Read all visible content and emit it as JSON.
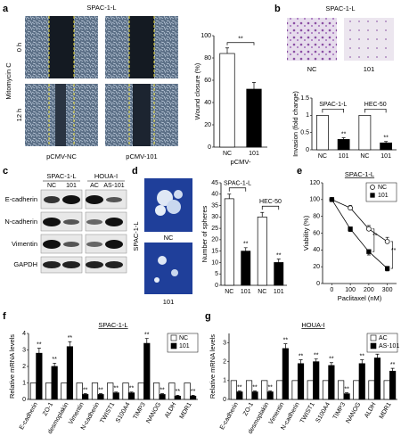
{
  "figure": {
    "letters": [
      "a",
      "b",
      "c",
      "d",
      "e",
      "f",
      "g"
    ],
    "a": {
      "title": "SPAC-1-L",
      "treatment": "Mitomycin C",
      "times": [
        "0 h",
        "12 h"
      ],
      "images": [
        "pCMV-NC",
        "pCMV-101"
      ]
    },
    "b": {
      "title": "SPAC-1-L",
      "images": [
        "NC",
        "101"
      ]
    },
    "c": {
      "lines": [
        "SPAC-1-L",
        "HOUA-I"
      ],
      "lanes": [
        "NC",
        "101",
        "AC",
        "AS-101"
      ],
      "proteins": [
        "E-cadherin",
        "N-cadherin",
        "Vimentin",
        "GAPDH"
      ]
    },
    "d": {
      "line": "SPAC-1-L",
      "images": [
        "NC",
        "101"
      ]
    }
  },
  "chart_data": [
    {
      "type": "bar",
      "ylabel": "Wound closure (%)",
      "xlabel": "pCMV-",
      "categories": [
        "NC",
        "101"
      ],
      "values": [
        84,
        52
      ],
      "errors": [
        5,
        6
      ],
      "colors": [
        "#ffffff",
        "#000000"
      ],
      "ylim": [
        0,
        100
      ],
      "yticks": [
        0,
        20,
        40,
        60,
        80,
        100
      ],
      "significance": "**"
    },
    {
      "type": "bar",
      "ylabel": "Invasion (fold change)",
      "groups": [
        "SPAC-1-L",
        "HEC-50"
      ],
      "categories": [
        "NC",
        "101",
        "NC",
        "101"
      ],
      "values": [
        1,
        0.3,
        1,
        0.2
      ],
      "errors": [
        null,
        0.05,
        null,
        0.04
      ],
      "colors": [
        "#ffffff",
        "#000000",
        "#ffffff",
        "#000000"
      ],
      "ylim": [
        0,
        1.5
      ],
      "yticks": [
        0,
        0.5,
        1,
        1.5
      ],
      "significance": [
        null,
        "**",
        null,
        "**"
      ]
    },
    {
      "type": "bar",
      "ylabel": "Number of spheres",
      "groups": [
        "SPAC-1-L",
        "HEC-50"
      ],
      "categories": [
        "NC",
        "101",
        "NC",
        "101"
      ],
      "values": [
        38,
        15,
        30,
        10
      ],
      "errors": [
        2,
        1.5,
        2,
        1.5
      ],
      "colors": [
        "#ffffff",
        "#000000",
        "#ffffff",
        "#000000"
      ],
      "ylim": [
        0,
        45
      ],
      "yticks": [
        0,
        5,
        10,
        15,
        20,
        25,
        30,
        35,
        40,
        45
      ],
      "significance": [
        null,
        "**",
        null,
        "**"
      ]
    },
    {
      "type": "line",
      "title": "SPAC-1-L",
      "ylabel": "Viability (%)",
      "xlabel": "Paclitaxel (nM)",
      "x": [
        0,
        100,
        200,
        300
      ],
      "xlim": [
        -50,
        350
      ],
      "xticks": [
        0,
        100,
        200,
        300
      ],
      "ylim": [
        0,
        120
      ],
      "yticks": [
        0,
        20,
        40,
        60,
        80,
        100,
        120
      ],
      "legend": "upper right",
      "series": [
        {
          "name": "NC",
          "color": "#ffffff",
          "marker": "circle",
          "values": [
            100,
            90,
            65,
            50
          ],
          "errors": [
            null,
            3,
            4,
            5
          ]
        },
        {
          "name": "101",
          "color": "#000000",
          "marker": "square",
          "values": [
            100,
            65,
            38,
            18
          ],
          "errors": [
            null,
            3,
            4,
            3
          ]
        }
      ],
      "significance": [
        null,
        null,
        "**",
        "**"
      ]
    },
    {
      "type": "bar",
      "title": "SPAC-1-L",
      "ylabel": "Relative mRNA levels",
      "xtick_rotation": -60,
      "legend": "upper right",
      "categories": [
        "E-cadherin",
        "ZO-1",
        "desmoplakin",
        "Vimentin",
        "N-cadherin",
        "TWIST1",
        "S100A4",
        "TIMP3",
        "NANOG",
        "ALDH",
        "MDR1"
      ],
      "ylim": [
        0,
        4
      ],
      "yticks": [
        0,
        1,
        2,
        3,
        4
      ],
      "series": [
        {
          "name": "NC",
          "color": "#ffffff",
          "values": [
            1,
            1,
            1,
            1,
            1,
            1,
            1,
            1,
            1,
            1,
            1
          ]
        },
        {
          "name": "101",
          "color": "#000000",
          "values": [
            2.8,
            2.0,
            3.2,
            0.3,
            0.3,
            0.4,
            0.4,
            3.4,
            0.3,
            0.2,
            0.2
          ],
          "errors": [
            0.3,
            0.2,
            0.3,
            0.05,
            0.05,
            0.05,
            0.05,
            0.3,
            0.05,
            0.05,
            0.05
          ],
          "significance": [
            "**",
            "**",
            "**",
            "**",
            "**",
            "**",
            "**",
            "**",
            "**",
            "**",
            "**"
          ]
        }
      ]
    },
    {
      "type": "bar",
      "title": "HOUA-I",
      "ylabel": "Relative mRNA levels",
      "xtick_rotation": -60,
      "legend": "upper right",
      "categories": [
        "E-cadherin",
        "ZO-1",
        "desmoplakin",
        "Vimentin",
        "N-cadherin",
        "TWIST1",
        "S100A4",
        "TIMP3",
        "NANOG",
        "ALDH",
        "MDR1"
      ],
      "ylim": [
        0,
        3.5
      ],
      "yticks": [
        0,
        1,
        2,
        3
      ],
      "series": [
        {
          "name": "AC",
          "color": "#ffffff",
          "values": [
            1,
            1,
            1,
            1,
            1,
            1,
            1,
            1,
            1,
            1,
            1
          ]
        },
        {
          "name": "AS-101",
          "color": "#000000",
          "values": [
            0.4,
            0.4,
            0.4,
            2.7,
            1.9,
            2.0,
            1.8,
            0.3,
            1.9,
            2.2,
            1.5
          ],
          "errors": [
            0.05,
            0.05,
            0.05,
            0.25,
            0.2,
            0.15,
            0.15,
            0.05,
            0.2,
            0.2,
            0.15
          ],
          "significance": [
            "**",
            "**",
            "**",
            "**",
            "**",
            "**",
            "**",
            "**",
            "**",
            "**",
            "**"
          ]
        }
      ]
    }
  ]
}
